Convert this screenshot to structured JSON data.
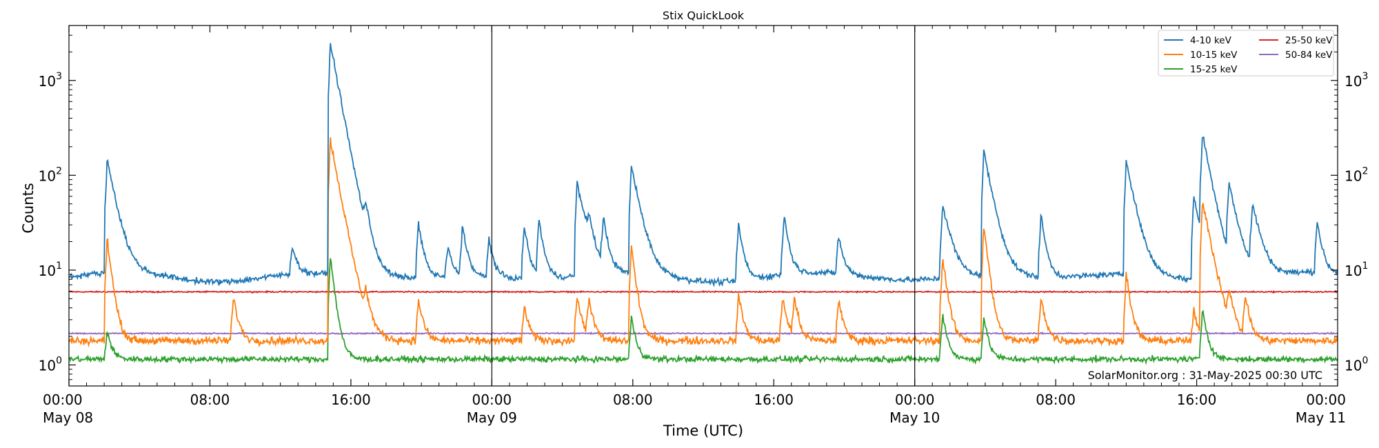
{
  "chart_data": {
    "type": "line",
    "title": "Stix QuickLook",
    "xlabel": "Time (UTC)",
    "ylabel": "Counts",
    "yscale": "log",
    "xlim": [
      "2025-05-08 00:00",
      "2025-05-11 00:00"
    ],
    "ylim": [
      0.6,
      3800
    ],
    "grid": false,
    "legend_position": "top-right",
    "day_separators": [
      "2025-05-09 00:00",
      "2025-05-10 00:00"
    ],
    "annotation": "SolarMonitor.org : 31-May-2025 00:30 UTC",
    "x_ticks": [
      {
        "t": "2025-05-08 00:00",
        "time": "00:00",
        "date": "May 08"
      },
      {
        "t": "2025-05-08 08:00",
        "time": "08:00",
        "date": ""
      },
      {
        "t": "2025-05-08 16:00",
        "time": "16:00",
        "date": ""
      },
      {
        "t": "2025-05-09 00:00",
        "time": "00:00",
        "date": "May 09"
      },
      {
        "t": "2025-05-09 08:00",
        "time": "08:00",
        "date": ""
      },
      {
        "t": "2025-05-09 16:00",
        "time": "16:00",
        "date": ""
      },
      {
        "t": "2025-05-10 00:00",
        "time": "00:00",
        "date": "May 10"
      },
      {
        "t": "2025-05-10 08:00",
        "time": "08:00",
        "date": ""
      },
      {
        "t": "2025-05-10 16:00",
        "time": "16:00",
        "date": ""
      },
      {
        "t": "2025-05-11 00:00",
        "time": "00:00",
        "date": "May 11"
      }
    ],
    "y_ticks": [
      {
        "value": 1,
        "base": "10",
        "exp": "0"
      },
      {
        "value": 10,
        "base": "10",
        "exp": "1"
      },
      {
        "value": 100,
        "base": "10",
        "exp": "2"
      },
      {
        "value": 1000,
        "base": "10",
        "exp": "3"
      }
    ],
    "series": [
      {
        "name": "4-10 keV",
        "color": "#1f77b4",
        "baseline": 8.5,
        "peaks": [
          {
            "t": "2025-05-08 02:10",
            "peak": 150
          },
          {
            "t": "2025-05-08 14:50",
            "peak": 2500
          },
          {
            "t": "2025-05-08 12:40",
            "peak": 18
          },
          {
            "t": "2025-05-08 16:50",
            "peak": 30
          },
          {
            "t": "2025-05-08 19:50",
            "peak": 33
          },
          {
            "t": "2025-05-08 21:30",
            "peak": 18
          },
          {
            "t": "2025-05-08 22:20",
            "peak": 30
          },
          {
            "t": "2025-05-08 23:50",
            "peak": 22
          },
          {
            "t": "2025-05-09 01:50",
            "peak": 30
          },
          {
            "t": "2025-05-09 02:40",
            "peak": 35
          },
          {
            "t": "2025-05-09 04:50",
            "peak": 85
          },
          {
            "t": "2025-05-09 05:30",
            "peak": 25
          },
          {
            "t": "2025-05-09 06:20",
            "peak": 33
          },
          {
            "t": "2025-05-09 07:55",
            "peak": 125
          },
          {
            "t": "2025-05-09 14:00",
            "peak": 32
          },
          {
            "t": "2025-05-09 16:35",
            "peak": 38
          },
          {
            "t": "2025-05-09 19:40",
            "peak": 23
          },
          {
            "t": "2025-05-10 01:35",
            "peak": 50
          },
          {
            "t": "2025-05-10 03:55",
            "peak": 180
          },
          {
            "t": "2025-05-10 07:10",
            "peak": 38
          },
          {
            "t": "2025-05-10 12:00",
            "peak": 145
          },
          {
            "t": "2025-05-10 15:50",
            "peak": 60
          },
          {
            "t": "2025-05-10 16:20",
            "peak": 260
          },
          {
            "t": "2025-05-10 17:50",
            "peak": 78
          },
          {
            "t": "2025-05-10 19:10",
            "peak": 48
          },
          {
            "t": "2025-05-10 22:50",
            "peak": 33
          }
        ]
      },
      {
        "name": "10-15 keV",
        "color": "#ff7f0e",
        "baseline": 1.8,
        "peaks": [
          {
            "t": "2025-05-08 02:10",
            "peak": 22
          },
          {
            "t": "2025-05-08 09:20",
            "peak": 5.3
          },
          {
            "t": "2025-05-08 14:50",
            "peak": 240
          },
          {
            "t": "2025-05-08 16:50",
            "peak": 4.3
          },
          {
            "t": "2025-05-08 19:50",
            "peak": 5
          },
          {
            "t": "2025-05-09 01:50",
            "peak": 4.2
          },
          {
            "t": "2025-05-09 04:50",
            "peak": 5.5
          },
          {
            "t": "2025-05-09 05:30",
            "peak": 5
          },
          {
            "t": "2025-05-09 07:55",
            "peak": 18
          },
          {
            "t": "2025-05-09 14:00",
            "peak": 5.5
          },
          {
            "t": "2025-05-09 16:30",
            "peak": 5.3
          },
          {
            "t": "2025-05-09 17:10",
            "peak": 5
          },
          {
            "t": "2025-05-09 19:40",
            "peak": 5
          },
          {
            "t": "2025-05-10 01:35",
            "peak": 14
          },
          {
            "t": "2025-05-10 03:55",
            "peak": 30
          },
          {
            "t": "2025-05-10 07:10",
            "peak": 5.3
          },
          {
            "t": "2025-05-10 12:00",
            "peak": 9
          },
          {
            "t": "2025-05-10 15:50",
            "peak": 3.7
          },
          {
            "t": "2025-05-10 16:20",
            "peak": 55
          },
          {
            "t": "2025-05-10 17:50",
            "peak": 5
          },
          {
            "t": "2025-05-10 18:45",
            "peak": 5.3
          }
        ]
      },
      {
        "name": "15-25 keV",
        "color": "#2ca02c",
        "baseline": 1.15,
        "peaks": [
          {
            "t": "2025-05-08 02:10",
            "peak": 2.3
          },
          {
            "t": "2025-05-08 14:50",
            "peak": 14
          },
          {
            "t": "2025-05-09 07:55",
            "peak": 3.2
          },
          {
            "t": "2025-05-10 01:35",
            "peak": 3.5
          },
          {
            "t": "2025-05-10 03:55",
            "peak": 3.2
          },
          {
            "t": "2025-05-10 16:20",
            "peak": 4
          }
        ]
      },
      {
        "name": "25-50 keV",
        "color": "#d62728",
        "baseline": 5.9,
        "peaks": []
      },
      {
        "name": "50-84 keV",
        "color": "#9467bd",
        "baseline": 2.15,
        "peaks": []
      }
    ]
  }
}
